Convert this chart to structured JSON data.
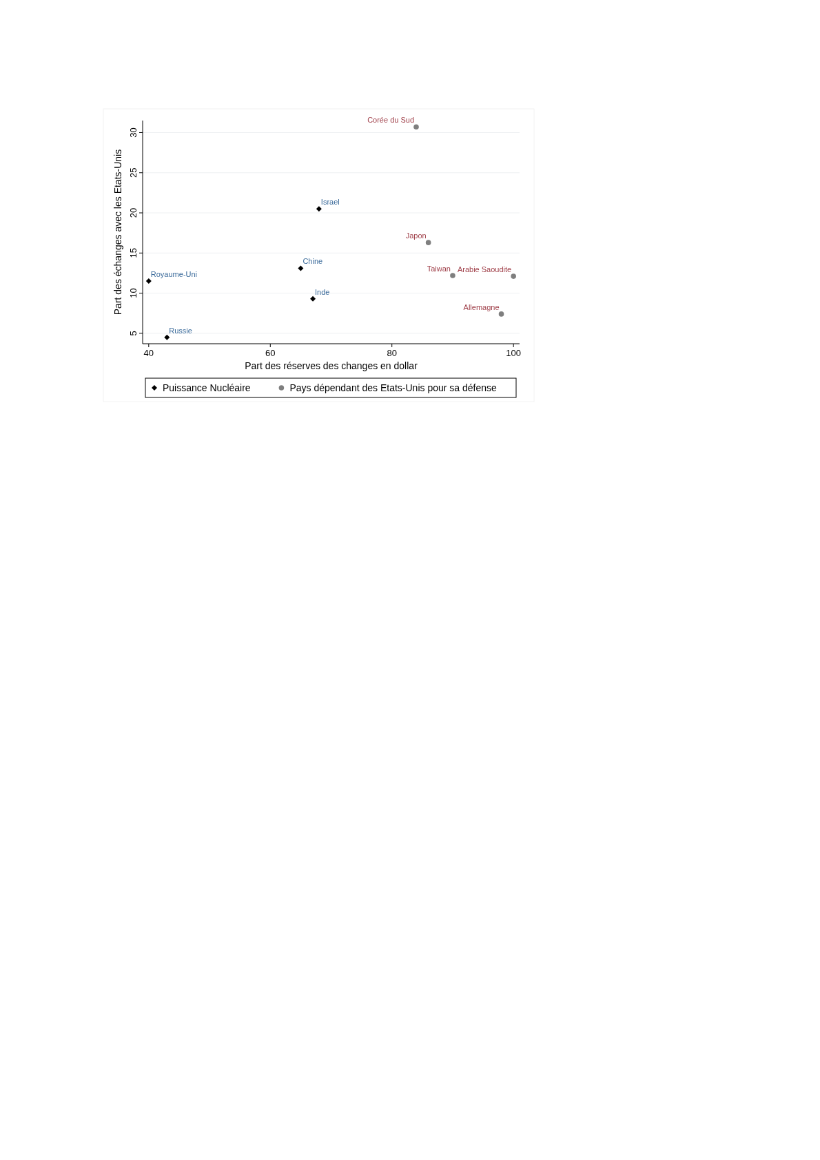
{
  "chart_data": {
    "type": "scatter",
    "xlabel": "Part des réserves des changes en dollar",
    "ylabel": "Part des échanges avec les Etats-Unis",
    "xlim": [
      39,
      101
    ],
    "xticks": [
      40,
      60,
      80,
      100
    ],
    "ylim": [
      3.7,
      31.5
    ],
    "yticks": [
      5,
      10,
      15,
      20,
      25,
      30
    ],
    "grid": "y",
    "legend": "bottom",
    "series": [
      {
        "name": "Puissance Nucléaire",
        "color": "#000000",
        "marker": "diamond",
        "x": [
          40,
          43,
          65,
          67,
          68
        ],
        "values": [
          11.5,
          4.5,
          13.1,
          9.3,
          20.5
        ]
      },
      {
        "name": "Pays dépendant des Etats-Unis pour sa défense",
        "color": "#7f7f7f",
        "marker": "circle",
        "x": [
          84,
          86,
          90,
          100,
          98
        ],
        "values": [
          30.7,
          16.3,
          12.2,
          12.1,
          7.4
        ]
      }
    ],
    "annotations": [
      {
        "text": "Royaume-Uni",
        "x": 40,
        "y": 11.5
      },
      {
        "text": "Russie",
        "x": 43,
        "y": 4.5
      },
      {
        "text": "Chine",
        "x": 65,
        "y": 13.1
      },
      {
        "text": "Inde",
        "x": 67,
        "y": 9.3
      },
      {
        "text": "Israel",
        "x": 68,
        "y": 20.5
      },
      {
        "text": "Corée du Sud",
        "x": 84,
        "y": 30.7
      },
      {
        "text": "Japon",
        "x": 86,
        "y": 16.3
      },
      {
        "text": "Taiwan",
        "x": 90,
        "y": 12.2
      },
      {
        "text": "Arabie Saoudite",
        "x": 100,
        "y": 12.1
      },
      {
        "text": "Allemagne",
        "x": 98,
        "y": 7.4
      }
    ]
  }
}
